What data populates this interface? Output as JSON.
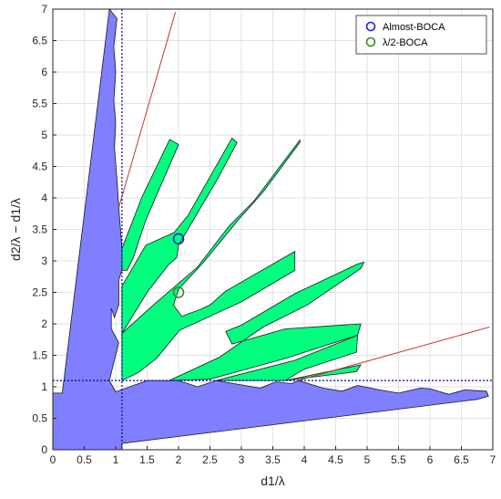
{
  "chart_data": {
    "type": "area",
    "title": "",
    "xlabel": "d1/λ",
    "ylabel": "d2/λ − d1/λ",
    "xlim": [
      0,
      7
    ],
    "ylim": [
      0,
      7
    ],
    "xticks": [
      "0",
      "0.5",
      "1",
      "1.5",
      "2",
      "2.5",
      "3",
      "3.5",
      "4",
      "4.5",
      "5",
      "5.5",
      "6",
      "6.5",
      "7"
    ],
    "yticks": [
      "0",
      "0.5",
      "1",
      "1.5",
      "2",
      "2.5",
      "3",
      "3.5",
      "4",
      "4.5",
      "5",
      "5.5",
      "6",
      "6.5",
      "7"
    ],
    "grid": true,
    "legend_position": "top-right",
    "colors": {
      "blue_region": "#7f7fff",
      "green_region": "#00ff7f",
      "red_line": "#c0392b",
      "ref_line": "#0000aa",
      "almost_marker": "#1f1fcc",
      "half_marker": "#3a8a1a"
    },
    "reference_lines": {
      "x": 1.1,
      "y": 1.1
    },
    "blue_region": [
      [
        0,
        0
      ],
      [
        0,
        0.9
      ],
      [
        0.15,
        0.9
      ],
      [
        0.2,
        1.3
      ],
      [
        0.9,
        7.0
      ],
      [
        1.02,
        6.85
      ],
      [
        0.97,
        6.4
      ],
      [
        1.0,
        6.0
      ],
      [
        0.97,
        5.55
      ],
      [
        1.0,
        5.2
      ],
      [
        0.98,
        4.8
      ],
      [
        1.02,
        4.3
      ],
      [
        1.05,
        3.85
      ],
      [
        1.1,
        3.2
      ],
      [
        1.1,
        2.85
      ],
      [
        1.05,
        2.7
      ],
      [
        1.05,
        2.3
      ],
      [
        0.98,
        2.1
      ],
      [
        0.93,
        2.25
      ],
      [
        0.93,
        1.92
      ],
      [
        1.05,
        1.7
      ],
      [
        1.0,
        1.5
      ],
      [
        0.95,
        1.3
      ],
      [
        0.9,
        1.1
      ],
      [
        1.0,
        0.92
      ],
      [
        1.5,
        1.1
      ],
      [
        2.0,
        1.1
      ],
      [
        2.3,
        1.0
      ],
      [
        2.6,
        1.1
      ],
      [
        3.0,
        1.03
      ],
      [
        3.3,
        0.98
      ],
      [
        3.55,
        1.08
      ],
      [
        3.8,
        1.05
      ],
      [
        3.9,
        1.1
      ],
      [
        4.3,
        0.98
      ],
      [
        4.6,
        0.93
      ],
      [
        4.85,
        1.02
      ],
      [
        5.2,
        0.95
      ],
      [
        5.5,
        0.9
      ],
      [
        5.85,
        0.98
      ],
      [
        6.0,
        0.97
      ],
      [
        6.3,
        0.88
      ],
      [
        6.55,
        0.95
      ],
      [
        6.9,
        0.93
      ],
      [
        6.93,
        0.85
      ],
      [
        6.75,
        0.8
      ],
      [
        1.1,
        0.1
      ],
      [
        1.1,
        0
      ]
    ],
    "green_regions": [
      [
        [
          1.1,
          2.85
        ],
        [
          1.1,
          3.2
        ],
        [
          1.42,
          4.02
        ],
        [
          1.86,
          4.93
        ],
        [
          2.0,
          4.85
        ],
        [
          1.98,
          4.8
        ],
        [
          1.48,
          3.65
        ],
        [
          1.28,
          3.05
        ],
        [
          1.18,
          2.85
        ]
      ],
      [
        [
          1.1,
          1.85
        ],
        [
          1.1,
          2.6
        ],
        [
          1.48,
          3.25
        ],
        [
          1.93,
          3.45
        ],
        [
          2.15,
          3.72
        ],
        [
          2.85,
          4.95
        ],
        [
          2.93,
          4.88
        ],
        [
          2.62,
          4.3
        ],
        [
          2.0,
          3.25
        ],
        [
          1.97,
          3.05
        ],
        [
          1.85,
          2.95
        ],
        [
          1.5,
          2.5
        ]
      ],
      [
        [
          1.1,
          1.1
        ],
        [
          1.1,
          1.85
        ],
        [
          1.6,
          2.3
        ],
        [
          2.3,
          2.9
        ],
        [
          2.8,
          3.55
        ],
        [
          3.2,
          3.95
        ],
        [
          3.93,
          4.92
        ],
        [
          3.93,
          4.88
        ],
        [
          3.35,
          4.1
        ],
        [
          2.95,
          3.65
        ],
        [
          2.4,
          2.98
        ],
        [
          2.0,
          2.55
        ],
        [
          1.92,
          2.3
        ],
        [
          2.05,
          2.12
        ],
        [
          2.35,
          2.23
        ],
        [
          2.5,
          2.3
        ],
        [
          2.75,
          2.52
        ],
        [
          3.85,
          3.15
        ],
        [
          3.85,
          2.85
        ],
        [
          3.0,
          2.35
        ],
        [
          2.02,
          1.9
        ],
        [
          1.65,
          1.45
        ],
        [
          1.35,
          1.22
        ]
      ],
      [
        [
          1.85,
          1.1
        ],
        [
          2.65,
          1.47
        ],
        [
          3.35,
          1.95
        ],
        [
          4.05,
          2.3
        ],
        [
          4.9,
          2.88
        ],
        [
          4.95,
          2.98
        ],
        [
          4.85,
          2.95
        ],
        [
          3.85,
          2.48
        ],
        [
          3.0,
          1.98
        ],
        [
          2.75,
          1.88
        ],
        [
          2.85,
          1.68
        ],
        [
          3.7,
          1.92
        ],
        [
          4.9,
          2.0
        ],
        [
          4.85,
          1.82
        ],
        [
          3.7,
          1.45
        ],
        [
          2.5,
          1.12
        ]
      ],
      [
        [
          2.6,
          1.1
        ],
        [
          3.85,
          1.42
        ],
        [
          4.85,
          1.82
        ],
        [
          4.83,
          1.55
        ],
        [
          4.0,
          1.28
        ],
        [
          3.7,
          1.1
        ]
      ],
      [
        [
          3.7,
          1.1
        ],
        [
          4.9,
          1.35
        ],
        [
          4.83,
          1.24
        ],
        [
          4.1,
          1.15
        ]
      ]
    ],
    "red_lines": [
      [
        [
          1.05,
          3.85
        ],
        [
          1.95,
          6.95
        ]
      ],
      [
        [
          3.9,
          1.1
        ],
        [
          6.95,
          1.95
        ]
      ]
    ],
    "series": [
      {
        "name": "Almost-BOCA",
        "x": [
          2.0
        ],
        "y": [
          3.35
        ]
      },
      {
        "name": "λ/2-BOCA",
        "x": [
          2.0
        ],
        "y": [
          2.5
        ]
      }
    ]
  }
}
